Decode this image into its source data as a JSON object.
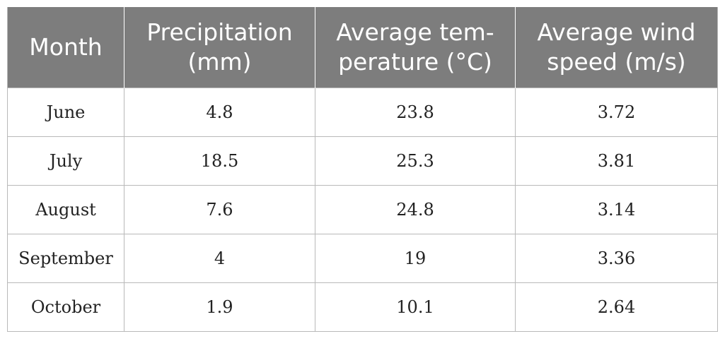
{
  "table": {
    "headers": [
      [
        "Month"
      ],
      [
        "Precipitation",
        "(mm)"
      ],
      [
        "Average tem-",
        "perature (°C)"
      ],
      [
        "Average wind",
        "speed (m/s)"
      ]
    ],
    "rows": [
      [
        "June",
        "4.8",
        "23.8",
        "3.72"
      ],
      [
        "July",
        "18.5",
        "25.3",
        "3.81"
      ],
      [
        "August",
        "7.6",
        "24.8",
        "3.14"
      ],
      [
        "September",
        "4",
        "19",
        "3.36"
      ],
      [
        "October",
        "1.9",
        "10.1",
        "2.64"
      ]
    ]
  }
}
